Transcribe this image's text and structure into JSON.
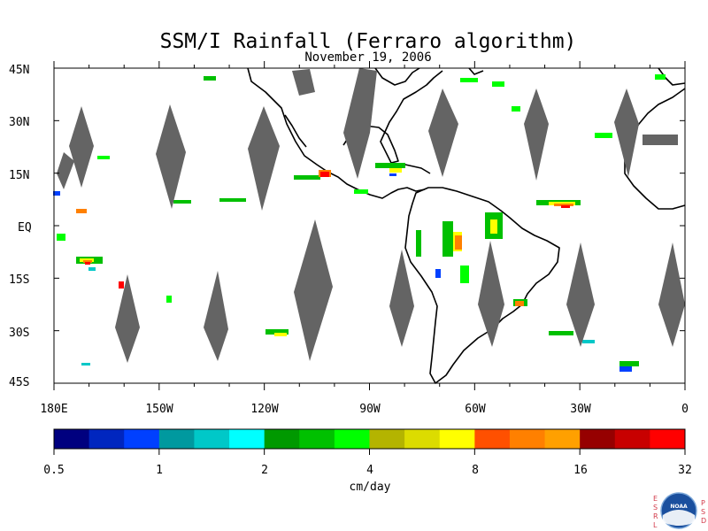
{
  "title": "SSM/I Rainfall (Ferraro algorithm)",
  "subtitle": "November 19, 2006",
  "lat_labels": [
    "45N",
    "30N",
    "15N",
    "EQ",
    "15S",
    "30S",
    "45S"
  ],
  "lon_labels": [
    "180E",
    "150W",
    "120W",
    "90W",
    "60W",
    "30W",
    "0"
  ],
  "colorbar": {
    "unit": "cm/day",
    "tick_labels": [
      "0.5",
      "1",
      "2",
      "4",
      "8",
      "16",
      "32"
    ],
    "colors": [
      "#00007f",
      "#0026bf",
      "#0040ff",
      "#00999f",
      "#00c8c8",
      "#00ffff",
      "#009900",
      "#00c000",
      "#00ff00",
      "#b4b400",
      "#dcdc00",
      "#ffff00",
      "#ff5000",
      "#ff8000",
      "#ffa000",
      "#960000",
      "#c80000",
      "#ff0000"
    ]
  },
  "no_data_color": "#646464",
  "agency": {
    "left_letters": [
      "E",
      "S",
      "R",
      "L"
    ],
    "right_letters": [
      "P",
      "S",
      "D"
    ],
    "logo_text": "NOAA"
  }
}
